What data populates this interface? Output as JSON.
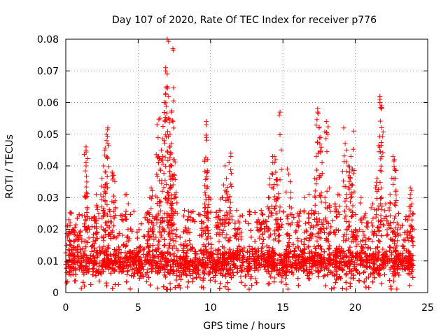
{
  "chart_data": {
    "type": "scatter",
    "title": "Day 107 of 2020, Rate Of TEC Index for receiver p776",
    "xlabel": "GPS time / hours",
    "ylabel": "ROTI / TECUs",
    "xlim": [
      0,
      25
    ],
    "ylim": [
      0,
      0.08
    ],
    "xticks": [
      0,
      5,
      10,
      15,
      20,
      25
    ],
    "yticks": [
      0,
      0.01,
      0.02,
      0.03,
      0.04,
      0.05,
      0.06,
      0.07,
      0.08
    ],
    "xtick_labels": [
      "0",
      "5",
      "10",
      "15",
      "20",
      "25"
    ],
    "ytick_labels": [
      "0",
      "0.01",
      "0.02",
      "0.03",
      "0.04",
      "0.05",
      "0.06",
      "0.07",
      "0.08"
    ],
    "grid": true,
    "marker": "+",
    "series_color": "#ff0000",
    "series": [
      {
        "name": "p776",
        "band": {
          "x_start": 0,
          "x_end": 24,
          "typical_min": 0.004,
          "typical_max": 0.016
        },
        "points": [
          [
            0.2,
            0.023
          ],
          [
            0.3,
            0.022
          ],
          [
            0.5,
            0.02
          ],
          [
            0.8,
            0.018
          ],
          [
            1.0,
            0.019
          ],
          [
            1.4,
            0.046
          ],
          [
            1.4,
            0.045
          ],
          [
            1.4,
            0.041
          ],
          [
            1.4,
            0.04
          ],
          [
            1.5,
            0.024
          ],
          [
            2.0,
            0.024
          ],
          [
            2.1,
            0.031
          ],
          [
            2.2,
            0.027
          ],
          [
            2.5,
            0.036
          ],
          [
            2.6,
            0.04
          ],
          [
            2.7,
            0.045
          ],
          [
            2.7,
            0.032
          ],
          [
            2.8,
            0.048
          ],
          [
            2.8,
            0.05
          ],
          [
            2.9,
            0.052
          ],
          [
            2.9,
            0.047
          ],
          [
            3.1,
            0.024
          ],
          [
            3.2,
            0.038
          ],
          [
            3.3,
            0.037
          ],
          [
            3.4,
            0.029
          ],
          [
            4.2,
            0.031
          ],
          [
            4.3,
            0.02
          ],
          [
            5.7,
            0.025
          ],
          [
            5.8,
            0.03
          ],
          [
            5.9,
            0.033
          ],
          [
            6.0,
            0.022
          ],
          [
            6.3,
            0.053
          ],
          [
            6.4,
            0.043
          ],
          [
            6.4,
            0.041
          ],
          [
            6.5,
            0.055
          ],
          [
            6.6,
            0.045
          ],
          [
            6.7,
            0.043
          ],
          [
            6.8,
            0.048
          ],
          [
            6.8,
            0.06
          ],
          [
            6.9,
            0.07
          ],
          [
            6.9,
            0.071
          ],
          [
            7.0,
            0.08
          ],
          [
            7.0,
            0.069
          ],
          [
            7.0,
            0.065
          ],
          [
            7.1,
            0.062
          ],
          [
            7.1,
            0.055
          ],
          [
            7.2,
            0.05
          ],
          [
            7.2,
            0.046
          ],
          [
            7.3,
            0.044
          ],
          [
            7.3,
            0.04
          ],
          [
            7.3,
            0.057
          ],
          [
            7.4,
            0.054
          ],
          [
            7.4,
            0.077
          ],
          [
            7.5,
            0.042
          ],
          [
            7.5,
            0.037
          ],
          [
            7.2,
            0.033
          ],
          [
            7.3,
            0.028
          ],
          [
            7.6,
            0.03
          ],
          [
            8.2,
            0.026
          ],
          [
            8.5,
            0.024
          ],
          [
            9.6,
            0.028
          ],
          [
            9.7,
            0.053
          ],
          [
            9.7,
            0.054
          ],
          [
            9.7,
            0.049
          ],
          [
            9.8,
            0.042
          ],
          [
            9.8,
            0.038
          ],
          [
            9.9,
            0.03
          ],
          [
            10.5,
            0.024
          ],
          [
            10.6,
            0.026
          ],
          [
            10.8,
            0.03
          ],
          [
            10.9,
            0.034
          ],
          [
            11.0,
            0.04
          ],
          [
            11.1,
            0.036
          ],
          [
            11.2,
            0.03
          ],
          [
            11.4,
            0.044
          ],
          [
            11.4,
            0.043
          ],
          [
            11.8,
            0.026
          ],
          [
            12.0,
            0.022
          ],
          [
            13.3,
            0.023
          ],
          [
            13.5,
            0.026
          ],
          [
            14.0,
            0.03
          ],
          [
            14.1,
            0.036
          ],
          [
            14.3,
            0.041
          ],
          [
            14.4,
            0.043
          ],
          [
            14.5,
            0.042
          ],
          [
            14.5,
            0.038
          ],
          [
            14.6,
            0.034
          ],
          [
            14.7,
            0.03
          ],
          [
            14.8,
            0.057
          ],
          [
            14.8,
            0.027
          ],
          [
            15.3,
            0.039
          ],
          [
            15.5,
            0.035
          ],
          [
            16.0,
            0.025
          ],
          [
            16.5,
            0.03
          ],
          [
            16.8,
            0.031
          ],
          [
            17.0,
            0.026
          ],
          [
            17.2,
            0.036
          ],
          [
            17.3,
            0.043
          ],
          [
            17.4,
            0.058
          ],
          [
            17.4,
            0.057
          ],
          [
            17.5,
            0.052
          ],
          [
            17.6,
            0.049
          ],
          [
            17.6,
            0.045
          ],
          [
            17.7,
            0.041
          ],
          [
            17.9,
            0.03
          ],
          [
            18.0,
            0.054
          ],
          [
            18.1,
            0.05
          ],
          [
            18.2,
            0.033
          ],
          [
            18.6,
            0.028
          ],
          [
            18.8,
            0.031
          ],
          [
            19.2,
            0.052
          ],
          [
            19.3,
            0.047
          ],
          [
            19.4,
            0.045
          ],
          [
            19.5,
            0.04
          ],
          [
            19.6,
            0.038
          ],
          [
            19.7,
            0.043
          ],
          [
            19.8,
            0.039
          ],
          [
            19.9,
            0.051
          ],
          [
            19.8,
            0.034
          ],
          [
            20.0,
            0.02
          ],
          [
            20.4,
            0.03
          ],
          [
            20.7,
            0.025
          ],
          [
            21.2,
            0.028
          ],
          [
            21.4,
            0.033
          ],
          [
            21.5,
            0.036
          ],
          [
            21.7,
            0.062
          ],
          [
            21.7,
            0.061
          ],
          [
            21.7,
            0.06
          ],
          [
            21.8,
            0.058
          ],
          [
            21.8,
            0.059
          ],
          [
            21.8,
            0.033
          ],
          [
            22.1,
            0.028
          ],
          [
            22.4,
            0.031
          ],
          [
            22.6,
            0.043
          ],
          [
            22.7,
            0.042
          ],
          [
            22.7,
            0.039
          ],
          [
            22.8,
            0.036
          ],
          [
            23.0,
            0.025
          ],
          [
            23.5,
            0.024
          ],
          [
            23.8,
            0.033
          ],
          [
            23.8,
            0.031
          ],
          [
            23.9,
            0.028
          ],
          [
            24.0,
            0.025
          ]
        ]
      }
    ]
  }
}
